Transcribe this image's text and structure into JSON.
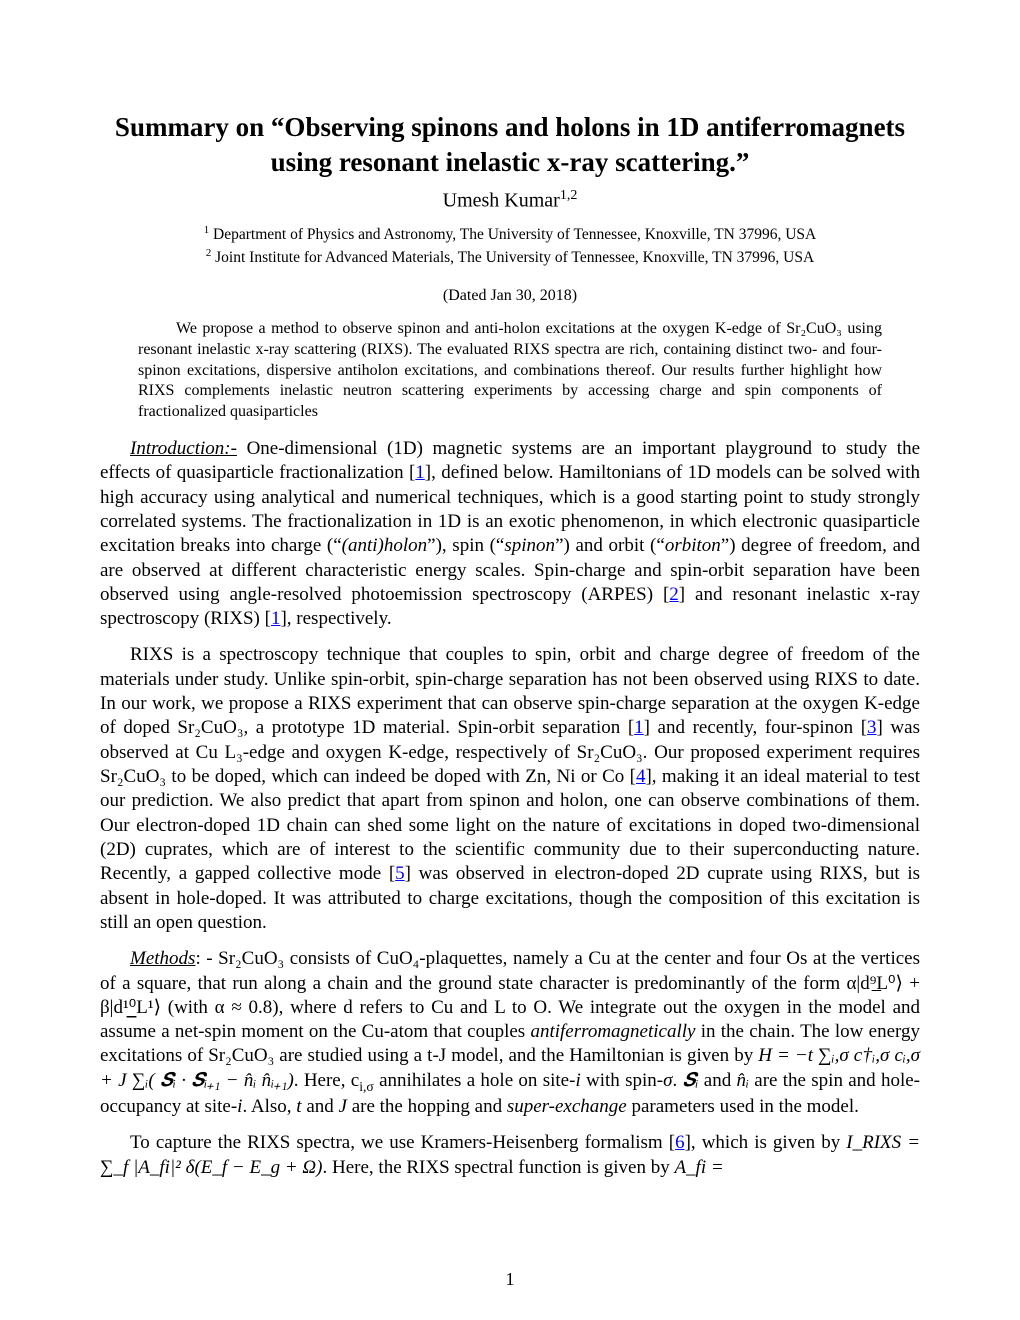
{
  "title": "Summary on “Observing spinons and holons in 1D antiferromagnets using resonant inelastic x-ray scattering.”",
  "author": "Umesh Kumar",
  "author_sup": "1,2",
  "affiliations": {
    "a1_sup": "1",
    "a1": " Department of Physics and Astronomy, The University of Tennessee, Knoxville, TN 37996, USA",
    "a2_sup": "2",
    "a2": " Joint Institute for Advanced Materials, The University of Tennessee, Knoxville, TN 37996, USA"
  },
  "date": "(Dated Jan 30, 2018)",
  "abstract": {
    "line1a": "We propose a method to observe spinon and anti-holon excitations at the oxygen K-edge of ",
    "compound": "Sr₂CuO₃",
    "line1b": " using resonant inelastic x-ray scattering (RIXS). The evaluated RIXS spectra are rich, containing distinct two- and four-spinon excitations, dispersive antiholon excitations, and combinations thereof. Our results further highlight how RIXS complements inelastic neutron scattering experiments by accessing charge and spin components of fractionalized quasiparticles"
  },
  "intro": {
    "head": "Introduction:-",
    "p1a": " One-dimensional (1D) magnetic systems are an important playground to study the effects of quasiparticle fractionalization [",
    "c1": "1",
    "p1b": "], defined below. Hamiltonians of 1D models can be solved with high accuracy using analytical and numerical techniques, which is a good starting point to study strongly correlated systems. The fractionalization in 1D is an exotic phenomenon, in which electronic quasiparticle excitation breaks into charge (“",
    "antiholon": "(anti)holon",
    "p1c": "”), spin (“",
    "spinon": "spinon",
    "p1d": "”) and orbit (“",
    "orbiton": "orbiton",
    "p1e": "”) degree of freedom, and are observed at different characteristic energy scales. Spin-charge and spin-orbit separation have been observed using angle-resolved photoemission spectroscopy (ARPES) [",
    "c2": "2",
    "p1f": "] and resonant inelastic x-ray spectroscopy (RIXS) [",
    "c3": "1",
    "p1g": "], respectively."
  },
  "para2": {
    "a": "RIXS is a spectroscopy technique that couples to spin, orbit and charge degree of freedom of the materials under study. Unlike spin-orbit, spin-charge separation has not been observed using RIXS to date. In our work, we propose a RIXS experiment that can observe spin-charge separation at the oxygen K-edge of doped Sr₂CuO₃, a prototype 1D material. Spin-orbit separation [",
    "c1": "1",
    "b": "] and recently, four-spinon [",
    "c2": "3",
    "c": "] was observed at Cu L₃-edge and oxygen K-edge, respectively of Sr₂CuO₃. Our proposed experiment requires Sr₂CuO₃ to be doped, which can indeed be doped with Zn, Ni or Co [",
    "c3": "4",
    "d": "], making it an ideal material to test our prediction. We also predict that apart from spinon and holon, one can observe combinations of them. Our electron-doped 1D chain can shed some light on the nature of excitations in doped two-dimensional (2D) cuprates, which are of interest to the scientific community due to their superconducting nature. Recently, a gapped collective mode [",
    "c4": "5",
    "e": "] was observed in electron-doped 2D cuprate using RIXS, but is absent in hole-doped. It was attributed to charge excitations, though the composition of this excitation is still an open question."
  },
  "methods": {
    "head": "Methods",
    "a": ": - Sr₂CuO₃ consists of CuO₄-plaquettes, namely a Cu at the center and four Os at the vertices of a square, that run along a chain and the ground state character is predominantly of the form ",
    "formula1": "α|d⁹̲L⁰⟩ + β|d¹⁰̲L¹⟩",
    "b": " (with α ≈ 0.8), where d refers to Cu and L to O. We integrate out the oxygen in the model and assume a net-spin moment on the Cu-atom that couples ",
    "afm": "antiferromagnetically",
    "c": " in the chain. The low energy excitations of Sr₂CuO₃ are studied using a t-J model, and the Hamiltonian is given by ",
    "hamiltonian": "H = −t ∑ᵢ,σ c†ᵢ,σ cᵢ,σ + J ∑ᵢ( 𝑺ᵢ · 𝑺ᵢ₊₁ − n̂ᵢ n̂ᵢ₊₁)",
    "d": ". Here, c",
    "d_sub": "i,σ",
    "e": " annihilates a hole on site-",
    "ei": "i",
    "f": " with spin-",
    "sigma": "σ",
    "g": ". ",
    "si": "𝑺ᵢ",
    "h": " and ",
    "ni": "n̂ᵢ",
    "i": " are the spin and hole-occupancy at site-",
    "ii": "i",
    "j": ". Also, ",
    "t": "t",
    "k": " and ",
    "jparam": "J",
    "l": " are the hopping and ",
    "superex": "super-exchange",
    "m": " parameters used in the model."
  },
  "para4": {
    "a": "To capture the RIXS spectra, we use Kramers-Heisenberg formalism [",
    "c1": "6",
    "b": "], which is given by ",
    "formula": "I_RIXS = ∑_f |A_fi|² δ(E_f − E_g + Ω)",
    "c": ". Here, the RIXS spectral function is given by ",
    "afi": "A_fi =",
    "d": ""
  },
  "pagenum": "1",
  "colors": {
    "link": "#0000ff",
    "text": "#000000",
    "bg": "#ffffff"
  },
  "fonts": {
    "body_family": "Times New Roman",
    "title_size_pt": 20,
    "author_size_pt": 15,
    "affil_size_pt": 11.5,
    "abstract_size_pt": 12,
    "body_size_pt": 14
  }
}
